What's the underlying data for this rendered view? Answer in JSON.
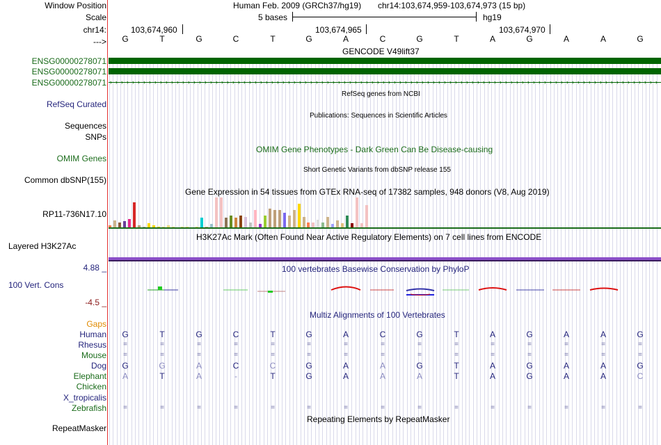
{
  "labels": {
    "window_position": "Window Position",
    "scale": "Scale",
    "chrom": "chr14:",
    "arrow": "--->",
    "gene1": "ENSG00000278071",
    "gene2": "ENSG00000278071",
    "gene3": "ENSG00000278071",
    "refseq": "RefSeq Curated",
    "sequences": "Sequences",
    "snps": "SNPs",
    "omim": "OMIM Genes",
    "common_snp": "Common dbSNP(155)",
    "gtex": "RP11-736N17.10",
    "h3k27ac": "Layered H3K27Ac",
    "phylop_max": "4.88 _",
    "vert_cons": "100 Vert. Cons",
    "phylop_min": "-4.5 _",
    "gaps": "Gaps",
    "human": "Human",
    "rhesus": "Rhesus",
    "mouse": "Mouse",
    "dog": "Dog",
    "elephant": "Elephant",
    "chicken": "Chicken",
    "xtrop": "X_tropicalis",
    "zebrafish": "Zebrafish",
    "repeatmasker": "RepeatMasker"
  },
  "header": {
    "assembly": "Human Feb. 2009 (GRCh37/hg19)",
    "position": "chr14:103,674,959-103,674,973 (15 bp)",
    "scale_text": "5 bases",
    "scale_db": "hg19",
    "coord1": "103,674,960",
    "coord2": "103,674,965",
    "coord3": "103,674,970"
  },
  "tracks": {
    "gencode": "GENCODE V49lift37",
    "refseq": "RefSeq genes from NCBI",
    "publications": "Publications: Sequences in Scientific Articles",
    "omim": "OMIM Gene Phenotypes - Dark Green Can Be Disease-causing",
    "dbsnp": "Short Genetic Variants from dbSNP release 155",
    "gtex": "Gene Expression in 54 tissues from GTEx RNA-seq of 17382 samples, 948 donors (V8, Aug 2019)",
    "h3k27ac": "H3K27Ac Mark (Often Found Near Active Regulatory Elements) on 7 cell lines from ENCODE",
    "phylop": "100 vertebrates Basewise Conservation by PhyloP",
    "multiz": "Multiz Alignments of 100 Vertebrates",
    "repeatmasker": "Repeating Elements by RepeatMasker"
  },
  "bases": [
    "G",
    "T",
    "G",
    "C",
    "T",
    "G",
    "A",
    "C",
    "G",
    "T",
    "A",
    "G",
    "A",
    "A",
    "G"
  ],
  "alignment": {
    "human": [
      "G",
      "T",
      "G",
      "C",
      "T",
      "G",
      "A",
      "C",
      "G",
      "T",
      "A",
      "G",
      "A",
      "A",
      "G"
    ],
    "rhesus": [
      "=",
      "=",
      "=",
      "=",
      "=",
      "=",
      "=",
      "=",
      "=",
      "=",
      "=",
      "=",
      "=",
      "=",
      "="
    ],
    "mouse": [
      "=",
      "=",
      "=",
      "=",
      "=",
      "=",
      "=",
      "=",
      "=",
      "=",
      "=",
      "=",
      "=",
      "=",
      "="
    ],
    "dog": [
      "G",
      "G",
      "A",
      "C",
      "C",
      "G",
      "A",
      "A",
      "G",
      "T",
      "A",
      "G",
      "A",
      "A",
      "G"
    ],
    "elephant": [
      "A",
      "T",
      "A",
      "-",
      "T",
      "G",
      "A",
      "A",
      "A",
      "T",
      "A",
      "G",
      "A",
      "A",
      "C"
    ],
    "zebrafish": [
      "=",
      "=",
      "=",
      "=",
      "=",
      "=",
      "=",
      "=",
      "=",
      "=",
      "=",
      "=",
      "=",
      "=",
      "="
    ]
  },
  "gtex_values": [
    0.12,
    0.3,
    0.22,
    0.26,
    0.36,
    1,
    0.12,
    0.06,
    0.18,
    0.12,
    0.05,
    0.05,
    0.1,
    0.05,
    0.04,
    0.05,
    0.06,
    0.04,
    0.05,
    0.42,
    0.05,
    0.16,
    1.2,
    1.2,
    0.42,
    0.5,
    0.42,
    0.5,
    0.44,
    0.22,
    0.72,
    0.16,
    0.5,
    0.76,
    0.72,
    0.7,
    0.6,
    0.5,
    0.7,
    0.95,
    0.44,
    0.22,
    0.22,
    0.32,
    0.22,
    0.44,
    0.16,
    0.3,
    0.2,
    0.5,
    0.2,
    1.2,
    0.2,
    0.9
  ],
  "gtex_colors": [
    "#ff7f50",
    "#cdb38b",
    "#8b5a3c",
    "#6a3d9a",
    "#e7298a",
    "#d62728",
    "#bfa07a",
    "#b0b0b0",
    "#ffd700",
    "#ffd700",
    "#ffd700",
    "#eedd82",
    "#eedd82",
    "#eedd82",
    "#eedd82",
    "#eedd82",
    "#eedd82",
    "#eedd82",
    "#eedd82",
    "#00ced1",
    "#cdb38b",
    "#9ac0cd",
    "#f4c2c2",
    "#f4c2c2",
    "#8b7355",
    "#6b8e23",
    "#cd853f",
    "#8b4513",
    "#d8bfd8",
    "#c0c0c0",
    "#ffb6c1",
    "#9932cc",
    "#9acd32",
    "#bfa07a",
    "#bfa07a",
    "#bfa07a",
    "#7b68ee",
    "#cdb38b",
    "#cdb38b",
    "#ffd700",
    "#cdb38b",
    "#ff7f50",
    "#f4c2c2",
    "#dddddd",
    "#8fbc8f",
    "#cdb38b",
    "#a0a0ff",
    "#cdb38b",
    "#e0c080",
    "#2e8b57",
    "#8b0000",
    "#f4c2c2",
    "#f4c2c2",
    "#f4c2c2"
  ],
  "colors": {
    "gene_green": "#006400",
    "label_green": "#1a6b1a",
    "label_blue": "#24247c",
    "h3k27ac_purple": "#8b4fc8",
    "divider_red": "#e53030"
  }
}
